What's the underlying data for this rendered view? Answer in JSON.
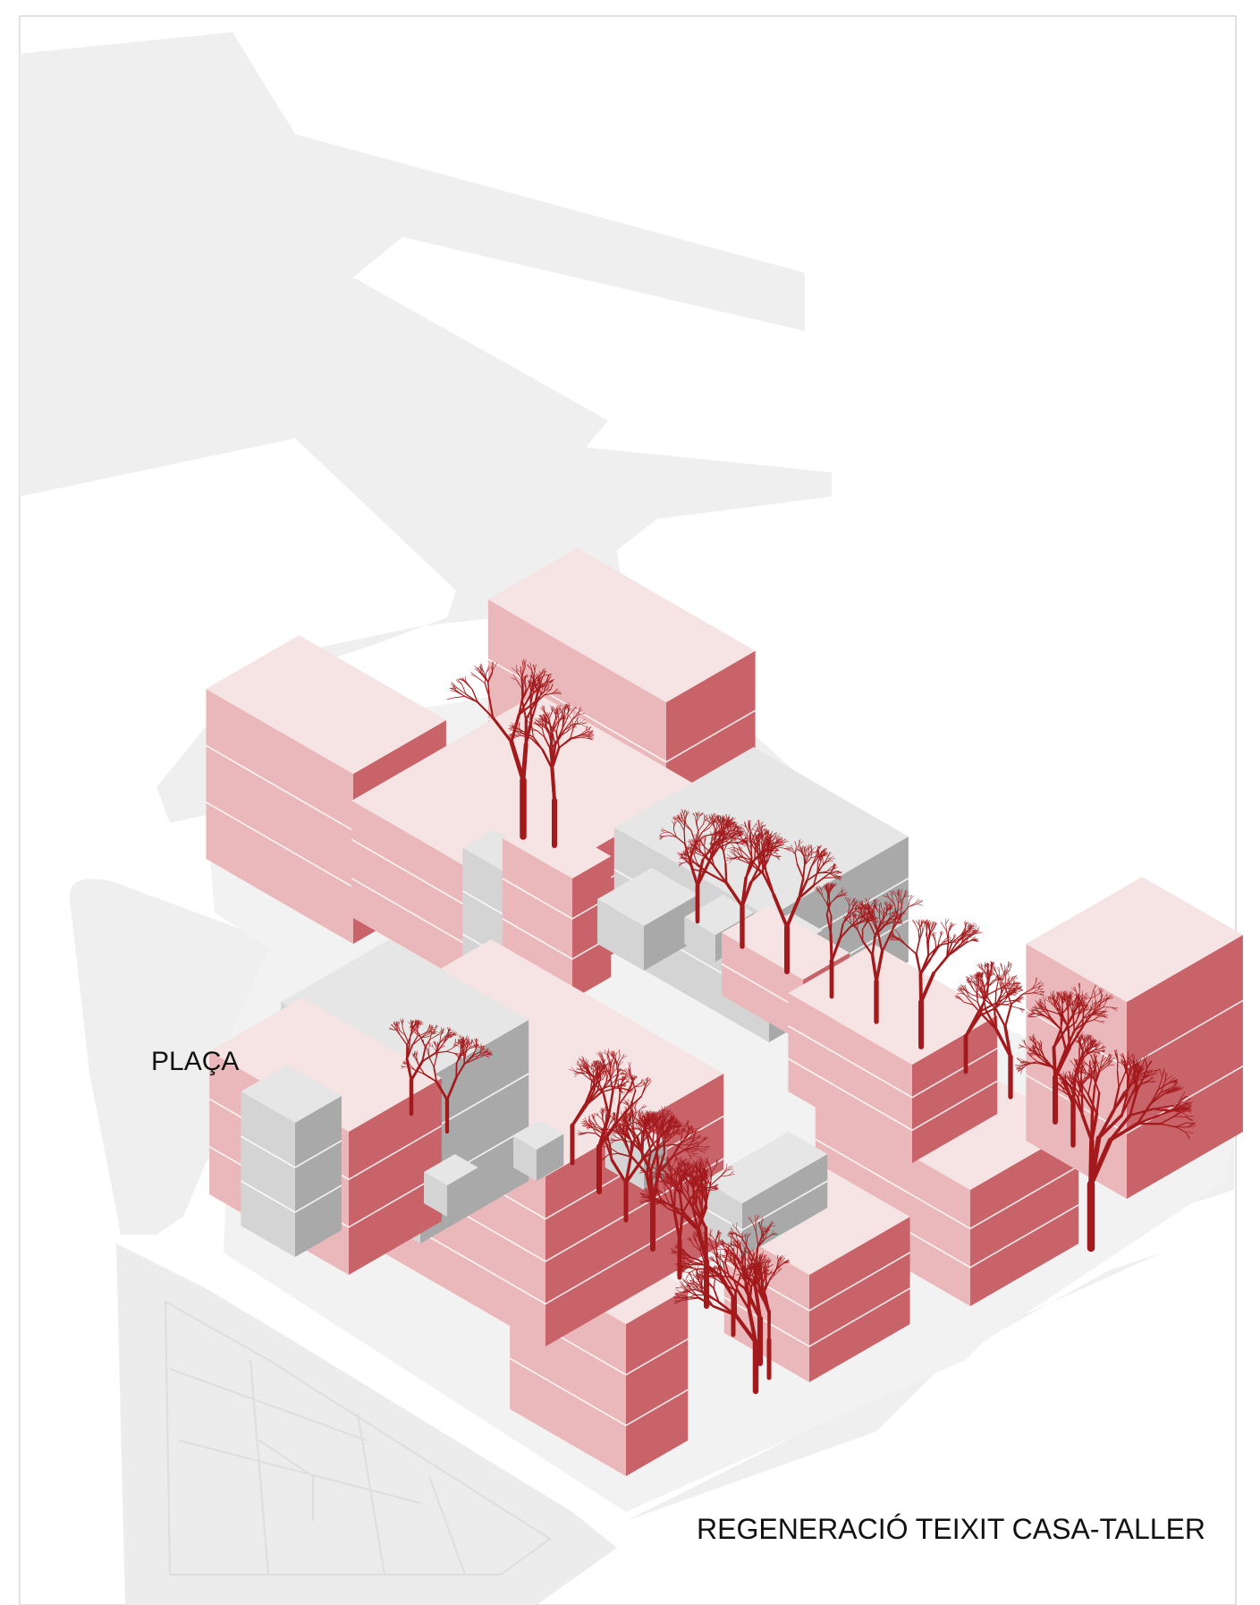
{
  "labels": {
    "plaza": "PLAÇA",
    "project_title": "REGENERACIÓ TEIXIT CASA-TALLER"
  },
  "colors": {
    "background": "#ffffff",
    "ground": "#efefef",
    "ground_lines": "#e2e2e2",
    "pink_top": "#f6e4e4",
    "pink_left": "#eab8ba",
    "pink_right": "#c8636a",
    "gray_top": "#e6e6e6",
    "gray_left": "#d4d4d4",
    "gray_right": "#a9a9a9",
    "tree": "#a31a1d"
  }
}
